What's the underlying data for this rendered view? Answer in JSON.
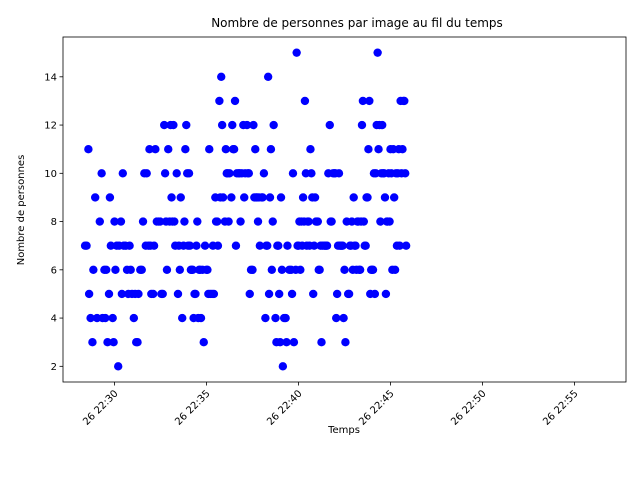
{
  "chart_data": {
    "type": "scatter",
    "title": "Nombre de personnes par image au fil du temps",
    "xlabel": "Temps",
    "ylabel": "Nombre de personnes",
    "point_color": "#0000ff",
    "grid": false,
    "x_unit": "minutes after 22:00 on day 26",
    "xlim": [
      27.2,
      57.8
    ],
    "ylim": [
      1.35,
      15.65
    ],
    "x_ticks": [
      {
        "value": 30,
        "label": "26 22:30"
      },
      {
        "value": 35,
        "label": "26 22:35"
      },
      {
        "value": 40,
        "label": "26 22:40"
      },
      {
        "value": 45,
        "label": "26 22:45"
      },
      {
        "value": 50,
        "label": "26 22:50"
      },
      {
        "value": 55,
        "label": "26 22:55"
      }
    ],
    "y_ticks": [
      {
        "value": 2,
        "label": "2"
      },
      {
        "value": 4,
        "label": "4"
      },
      {
        "value": 6,
        "label": "6"
      },
      {
        "value": 8,
        "label": "8"
      },
      {
        "value": 10,
        "label": "10"
      },
      {
        "value": 12,
        "label": "12"
      },
      {
        "value": 14,
        "label": "14"
      }
    ],
    "points": [
      [
        28.4,
        7
      ],
      [
        28.48,
        7
      ],
      [
        28.58,
        11
      ],
      [
        28.62,
        5
      ],
      [
        28.7,
        4
      ],
      [
        28.8,
        3
      ],
      [
        28.85,
        6
      ],
      [
        28.95,
        9
      ],
      [
        29.05,
        4
      ],
      [
        29.2,
        8
      ],
      [
        29.3,
        10
      ],
      [
        29.35,
        4
      ],
      [
        29.45,
        6
      ],
      [
        29.5,
        4
      ],
      [
        29.55,
        6
      ],
      [
        29.62,
        3
      ],
      [
        29.7,
        5
      ],
      [
        29.75,
        9
      ],
      [
        29.8,
        7
      ],
      [
        29.9,
        4
      ],
      [
        29.95,
        3
      ],
      [
        30.0,
        8
      ],
      [
        30.05,
        6
      ],
      [
        30.12,
        7
      ],
      [
        30.2,
        2
      ],
      [
        30.25,
        7
      ],
      [
        30.35,
        8
      ],
      [
        30.4,
        5
      ],
      [
        30.45,
        10
      ],
      [
        30.5,
        7
      ],
      [
        30.6,
        7
      ],
      [
        30.68,
        6
      ],
      [
        30.75,
        5
      ],
      [
        30.82,
        7
      ],
      [
        30.88,
        6
      ],
      [
        30.95,
        5
      ],
      [
        31.05,
        4
      ],
      [
        31.12,
        5
      ],
      [
        31.18,
        3
      ],
      [
        31.25,
        3
      ],
      [
        31.3,
        5
      ],
      [
        31.4,
        6
      ],
      [
        31.48,
        6
      ],
      [
        31.55,
        8
      ],
      [
        31.62,
        10
      ],
      [
        31.7,
        7
      ],
      [
        31.75,
        10
      ],
      [
        31.85,
        7
      ],
      [
        31.9,
        11
      ],
      [
        31.95,
        7
      ],
      [
        32.0,
        5
      ],
      [
        32.1,
        5
      ],
      [
        32.15,
        7
      ],
      [
        32.22,
        11
      ],
      [
        32.3,
        8
      ],
      [
        32.4,
        8
      ],
      [
        32.48,
        8
      ],
      [
        32.55,
        5
      ],
      [
        32.62,
        5
      ],
      [
        32.7,
        12
      ],
      [
        32.75,
        10
      ],
      [
        32.8,
        8
      ],
      [
        32.85,
        6
      ],
      [
        32.92,
        11
      ],
      [
        33.0,
        8
      ],
      [
        33.05,
        12
      ],
      [
        33.1,
        9
      ],
      [
        33.15,
        8
      ],
      [
        33.2,
        12
      ],
      [
        33.25,
        8
      ],
      [
        33.3,
        7
      ],
      [
        33.38,
        10
      ],
      [
        33.45,
        5
      ],
      [
        33.5,
        7
      ],
      [
        33.55,
        6
      ],
      [
        33.6,
        9
      ],
      [
        33.68,
        4
      ],
      [
        33.75,
        7
      ],
      [
        33.8,
        8
      ],
      [
        33.85,
        11
      ],
      [
        33.9,
        12
      ],
      [
        33.95,
        10
      ],
      [
        34.0,
        7
      ],
      [
        34.05,
        10
      ],
      [
        34.1,
        7
      ],
      [
        34.15,
        6
      ],
      [
        34.2,
        6
      ],
      [
        34.25,
        6
      ],
      [
        34.3,
        4
      ],
      [
        34.35,
        5
      ],
      [
        34.4,
        5
      ],
      [
        34.45,
        7
      ],
      [
        34.5,
        8
      ],
      [
        34.55,
        4
      ],
      [
        34.6,
        6
      ],
      [
        34.65,
        6
      ],
      [
        34.7,
        4
      ],
      [
        34.78,
        6
      ],
      [
        34.85,
        3
      ],
      [
        34.92,
        7
      ],
      [
        35.0,
        6
      ],
      [
        35.05,
        6
      ],
      [
        35.1,
        5
      ],
      [
        35.15,
        11
      ],
      [
        35.2,
        5
      ],
      [
        35.3,
        5
      ],
      [
        35.35,
        7
      ],
      [
        35.4,
        5
      ],
      [
        35.48,
        9
      ],
      [
        35.52,
        8
      ],
      [
        35.58,
        8
      ],
      [
        35.62,
        7
      ],
      [
        35.7,
        13
      ],
      [
        35.75,
        9
      ],
      [
        35.8,
        14
      ],
      [
        35.85,
        12
      ],
      [
        35.9,
        9
      ],
      [
        36.0,
        8
      ],
      [
        36.05,
        11
      ],
      [
        36.1,
        10
      ],
      [
        36.15,
        10
      ],
      [
        36.2,
        8
      ],
      [
        36.25,
        10
      ],
      [
        36.35,
        9
      ],
      [
        36.4,
        12
      ],
      [
        36.45,
        11
      ],
      [
        36.5,
        11
      ],
      [
        36.55,
        13
      ],
      [
        36.6,
        7
      ],
      [
        36.65,
        10
      ],
      [
        36.75,
        10
      ],
      [
        36.8,
        10
      ],
      [
        36.85,
        8
      ],
      [
        36.92,
        10
      ],
      [
        37.0,
        12
      ],
      [
        37.05,
        9
      ],
      [
        37.1,
        10
      ],
      [
        37.2,
        12
      ],
      [
        37.25,
        10
      ],
      [
        37.3,
        10
      ],
      [
        37.35,
        5
      ],
      [
        37.42,
        6
      ],
      [
        37.5,
        6
      ],
      [
        37.55,
        12
      ],
      [
        37.6,
        9
      ],
      [
        37.65,
        11
      ],
      [
        37.7,
        9
      ],
      [
        37.75,
        9
      ],
      [
        37.8,
        8
      ],
      [
        37.85,
        9
      ],
      [
        37.9,
        7
      ],
      [
        38.0,
        9
      ],
      [
        38.05,
        9
      ],
      [
        38.12,
        10
      ],
      [
        38.2,
        4
      ],
      [
        38.25,
        7
      ],
      [
        38.3,
        7
      ],
      [
        38.35,
        14
      ],
      [
        38.4,
        5
      ],
      [
        38.45,
        9
      ],
      [
        38.5,
        11
      ],
      [
        38.55,
        6
      ],
      [
        38.6,
        8
      ],
      [
        38.65,
        12
      ],
      [
        38.75,
        4
      ],
      [
        38.8,
        3
      ],
      [
        38.85,
        7
      ],
      [
        38.9,
        7
      ],
      [
        38.95,
        5
      ],
      [
        39.0,
        3
      ],
      [
        39.05,
        9
      ],
      [
        39.1,
        6
      ],
      [
        39.15,
        2
      ],
      [
        39.22,
        4
      ],
      [
        39.3,
        4
      ],
      [
        39.35,
        3
      ],
      [
        39.4,
        7
      ],
      [
        39.5,
        6
      ],
      [
        39.6,
        6
      ],
      [
        39.65,
        5
      ],
      [
        39.7,
        10
      ],
      [
        39.75,
        3
      ],
      [
        39.85,
        6
      ],
      [
        39.9,
        15
      ],
      [
        39.95,
        7
      ],
      [
        40.0,
        7
      ],
      [
        40.05,
        8
      ],
      [
        40.1,
        6
      ],
      [
        40.15,
        8
      ],
      [
        40.2,
        7
      ],
      [
        40.25,
        9
      ],
      [
        40.3,
        8
      ],
      [
        40.35,
        13
      ],
      [
        40.4,
        10
      ],
      [
        40.45,
        7
      ],
      [
        40.5,
        8
      ],
      [
        40.55,
        8
      ],
      [
        40.6,
        7
      ],
      [
        40.65,
        11
      ],
      [
        40.7,
        10
      ],
      [
        40.75,
        9
      ],
      [
        40.8,
        5
      ],
      [
        40.85,
        7
      ],
      [
        40.9,
        9
      ],
      [
        40.95,
        8
      ],
      [
        41.0,
        8
      ],
      [
        41.05,
        8
      ],
      [
        41.1,
        6
      ],
      [
        41.15,
        6
      ],
      [
        41.2,
        7
      ],
      [
        41.25,
        3
      ],
      [
        41.3,
        7
      ],
      [
        41.4,
        7
      ],
      [
        41.45,
        7
      ],
      [
        41.5,
        7
      ],
      [
        41.55,
        7
      ],
      [
        41.62,
        10
      ],
      [
        41.7,
        12
      ],
      [
        41.75,
        8
      ],
      [
        41.8,
        8
      ],
      [
        41.88,
        10
      ],
      [
        41.95,
        10
      ],
      [
        42.0,
        10
      ],
      [
        42.05,
        4
      ],
      [
        42.1,
        5
      ],
      [
        42.15,
        7
      ],
      [
        42.2,
        10
      ],
      [
        42.25,
        7
      ],
      [
        42.3,
        7
      ],
      [
        42.35,
        7
      ],
      [
        42.4,
        7
      ],
      [
        42.45,
        4
      ],
      [
        42.5,
        6
      ],
      [
        42.55,
        3
      ],
      [
        42.62,
        8
      ],
      [
        42.7,
        5
      ],
      [
        42.75,
        5
      ],
      [
        42.8,
        7
      ],
      [
        42.85,
        7
      ],
      [
        42.9,
        8
      ],
      [
        42.95,
        6
      ],
      [
        43.0,
        9
      ],
      [
        43.05,
        7
      ],
      [
        43.1,
        7
      ],
      [
        43.15,
        6
      ],
      [
        43.2,
        8
      ],
      [
        43.25,
        8
      ],
      [
        43.3,
        6
      ],
      [
        43.35,
        6
      ],
      [
        43.4,
        8
      ],
      [
        43.45,
        12
      ],
      [
        43.5,
        13
      ],
      [
        43.55,
        8
      ],
      [
        43.6,
        7
      ],
      [
        43.65,
        7
      ],
      [
        43.7,
        9
      ],
      [
        43.75,
        9
      ],
      [
        43.8,
        11
      ],
      [
        43.85,
        13
      ],
      [
        43.9,
        5
      ],
      [
        43.95,
        6
      ],
      [
        44.0,
        6
      ],
      [
        44.05,
        6
      ],
      [
        44.1,
        10
      ],
      [
        44.15,
        5
      ],
      [
        44.2,
        10
      ],
      [
        44.25,
        12
      ],
      [
        44.3,
        15
      ],
      [
        44.35,
        11
      ],
      [
        44.4,
        12
      ],
      [
        44.45,
        8
      ],
      [
        44.5,
        10
      ],
      [
        44.55,
        12
      ],
      [
        44.6,
        10
      ],
      [
        44.65,
        10
      ],
      [
        44.7,
        9
      ],
      [
        44.75,
        5
      ],
      [
        44.8,
        8
      ],
      [
        44.85,
        8
      ],
      [
        44.9,
        10
      ],
      [
        44.95,
        8
      ],
      [
        45.0,
        11
      ],
      [
        45.05,
        10
      ],
      [
        45.1,
        6
      ],
      [
        45.15,
        11
      ],
      [
        45.2,
        9
      ],
      [
        45.25,
        6
      ],
      [
        45.3,
        10
      ],
      [
        45.35,
        7
      ],
      [
        45.4,
        10
      ],
      [
        45.45,
        11
      ],
      [
        45.5,
        7
      ],
      [
        45.55,
        13
      ],
      [
        45.6,
        10
      ],
      [
        45.65,
        11
      ],
      [
        45.7,
        13
      ],
      [
        45.75,
        13
      ],
      [
        45.8,
        10
      ],
      [
        45.85,
        7
      ]
    ]
  }
}
